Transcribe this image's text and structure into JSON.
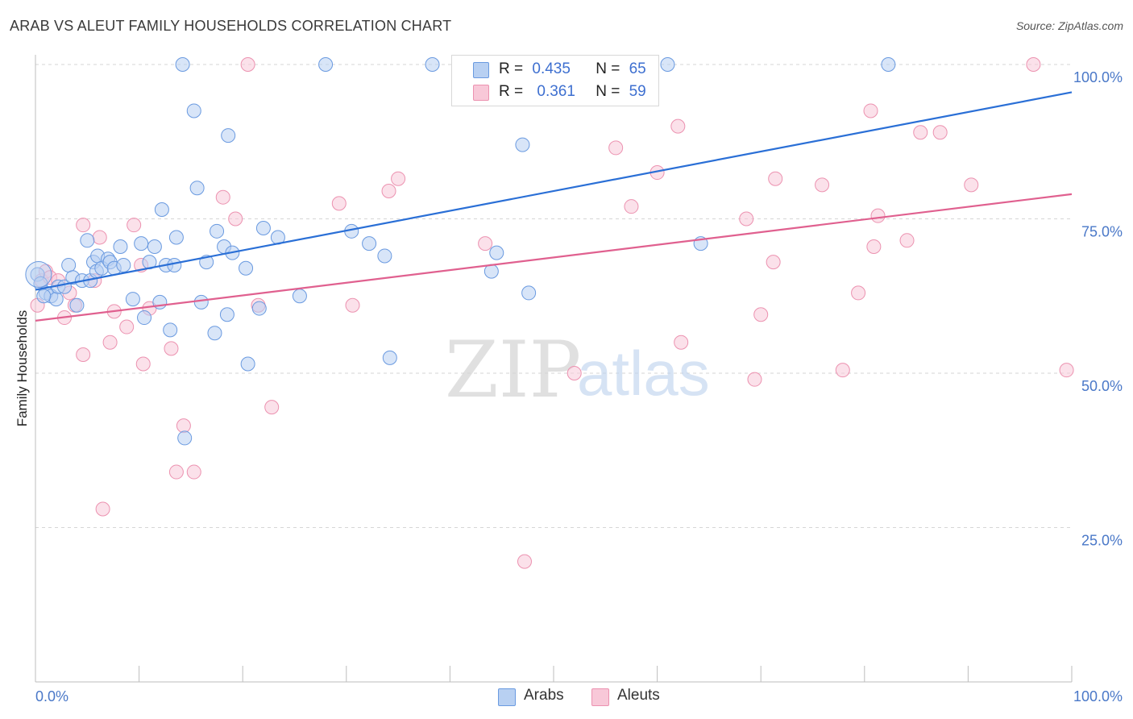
{
  "header": {
    "title": "ARAB VS ALEUT FAMILY HOUSEHOLDS CORRELATION CHART",
    "source": "Source: ZipAtlas.com"
  },
  "legend": {
    "series1": {
      "r_label": "R =",
      "r_value": "0.435",
      "n_label": "N =",
      "n_value": "65"
    },
    "series2": {
      "r_label": "R =",
      "r_value": "0.361",
      "n_label": "N =",
      "n_value": "59"
    }
  },
  "bottom_legend": {
    "series1": "Arabs",
    "series2": "Aleuts"
  },
  "watermark": {
    "zip": "ZIP",
    "atlas": "atlas"
  },
  "colors": {
    "arabs_fill": "#b8d0f2",
    "arabs_stroke": "#6a9ae0",
    "arabs_line": "#2a6fd6",
    "aleuts_fill": "#f8c8d8",
    "aleuts_stroke": "#ec92b0",
    "aleuts_line": "#e0608f",
    "grid": "#d6d6d6",
    "tick_label": "#4a78c8"
  },
  "chart_data": {
    "type": "scatter",
    "title": "ARAB VS ALEUT FAMILY HOUSEHOLDS CORRELATION CHART",
    "xlabel": "",
    "ylabel": "Family Households",
    "xlim": [
      0,
      100
    ],
    "ylim": [
      0,
      100
    ],
    "x_tick_labels": [
      "0.0%",
      "100.0%"
    ],
    "y_tick_labels": [
      "25.0%",
      "50.0%",
      "75.0%",
      "100.0%"
    ],
    "y_ticks": [
      25,
      50,
      75,
      100
    ],
    "grid": true,
    "legend_position": "top-center",
    "series": [
      {
        "name": "Arabs",
        "r": 0.435,
        "n": 65,
        "trend": [
          [
            0,
            63.5
          ],
          [
            100,
            95.5
          ]
        ],
        "points": [
          [
            0.2,
            66
          ],
          [
            0.5,
            64.5
          ],
          [
            1.0,
            63
          ],
          [
            1.5,
            62.5
          ],
          [
            2.0,
            62
          ],
          [
            2.2,
            64
          ],
          [
            2.8,
            64
          ],
          [
            3.2,
            67.5
          ],
          [
            3.6,
            65.5
          ],
          [
            4.0,
            61
          ],
          [
            4.5,
            65
          ],
          [
            5.0,
            71.5
          ],
          [
            5.3,
            65
          ],
          [
            5.6,
            68
          ],
          [
            5.9,
            66.5
          ],
          [
            6.0,
            69
          ],
          [
            6.4,
            67
          ],
          [
            7.0,
            68.5
          ],
          [
            7.2,
            68
          ],
          [
            7.6,
            67
          ],
          [
            8.2,
            70.5
          ],
          [
            8.5,
            67.5
          ],
          [
            9.4,
            62
          ],
          [
            10.2,
            71
          ],
          [
            10.5,
            59
          ],
          [
            11.0,
            68
          ],
          [
            11.5,
            70.5
          ],
          [
            12.0,
            61.5
          ],
          [
            12.2,
            76.5
          ],
          [
            12.6,
            67.5
          ],
          [
            13.0,
            57
          ],
          [
            13.4,
            67.5
          ],
          [
            13.6,
            72
          ],
          [
            14.2,
            100
          ],
          [
            14.4,
            39.5
          ],
          [
            15.3,
            92.5
          ],
          [
            15.6,
            80
          ],
          [
            16.0,
            61.5
          ],
          [
            16.5,
            68
          ],
          [
            17.3,
            56.5
          ],
          [
            17.5,
            73
          ],
          [
            18.2,
            70.5
          ],
          [
            18.5,
            59.5
          ],
          [
            18.6,
            88.5
          ],
          [
            19.0,
            69.5
          ],
          [
            20.3,
            67
          ],
          [
            20.5,
            51.5
          ],
          [
            21.6,
            60.5
          ],
          [
            22.0,
            73.5
          ],
          [
            23.4,
            72
          ],
          [
            25.5,
            62.5
          ],
          [
            28.0,
            100
          ],
          [
            30.5,
            73
          ],
          [
            32.2,
            71
          ],
          [
            33.7,
            69
          ],
          [
            34.2,
            52.5
          ],
          [
            38.3,
            100
          ],
          [
            44.0,
            66.5
          ],
          [
            44.5,
            69.5
          ],
          [
            47.0,
            87
          ],
          [
            47.6,
            63
          ],
          [
            61.0,
            100
          ],
          [
            64.2,
            71
          ],
          [
            82.3,
            100
          ],
          [
            0.8,
            62.5
          ]
        ]
      },
      {
        "name": "Aleuts",
        "r": 0.361,
        "n": 59,
        "trend": [
          [
            0,
            58.5
          ],
          [
            100,
            79
          ]
        ],
        "points": [
          [
            0.2,
            61
          ],
          [
            0.6,
            65
          ],
          [
            1.0,
            66.5
          ],
          [
            1.4,
            65.5
          ],
          [
            2.2,
            65
          ],
          [
            2.8,
            59
          ],
          [
            3.3,
            63
          ],
          [
            3.8,
            61
          ],
          [
            4.6,
            74
          ],
          [
            4.6,
            53
          ],
          [
            5.7,
            65
          ],
          [
            6.2,
            72
          ],
          [
            6.5,
            28
          ],
          [
            7.2,
            55
          ],
          [
            7.6,
            60
          ],
          [
            8.8,
            57.5
          ],
          [
            9.5,
            74
          ],
          [
            10.2,
            67.5
          ],
          [
            10.4,
            51.5
          ],
          [
            11.0,
            60.5
          ],
          [
            13.1,
            54
          ],
          [
            14.3,
            41.5
          ],
          [
            13.6,
            34
          ],
          [
            15.3,
            34
          ],
          [
            18.1,
            78.5
          ],
          [
            19.3,
            75
          ],
          [
            21.5,
            61
          ],
          [
            22.8,
            44.5
          ],
          [
            20.5,
            100
          ],
          [
            29.3,
            77.5
          ],
          [
            30.6,
            61
          ],
          [
            34.1,
            79.5
          ],
          [
            35.0,
            81.5
          ],
          [
            43.4,
            71
          ],
          [
            47.2,
            19.5
          ],
          [
            52.0,
            50
          ],
          [
            55.4,
            100
          ],
          [
            56.0,
            86.5
          ],
          [
            57.5,
            77
          ],
          [
            60.0,
            82.5
          ],
          [
            62.0,
            90
          ],
          [
            62.3,
            55
          ],
          [
            69.4,
            49
          ],
          [
            68.6,
            75
          ],
          [
            70.0,
            59.5
          ],
          [
            71.2,
            68
          ],
          [
            71.4,
            81.5
          ],
          [
            75.9,
            80.5
          ],
          [
            77.9,
            50.5
          ],
          [
            79.4,
            63
          ],
          [
            80.6,
            92.5
          ],
          [
            80.9,
            70.5
          ],
          [
            81.3,
            75.5
          ],
          [
            84.1,
            71.5
          ],
          [
            85.4,
            89
          ],
          [
            87.3,
            89
          ],
          [
            90.3,
            80.5
          ],
          [
            96.3,
            100
          ],
          [
            99.5,
            50.5
          ]
        ]
      }
    ]
  }
}
